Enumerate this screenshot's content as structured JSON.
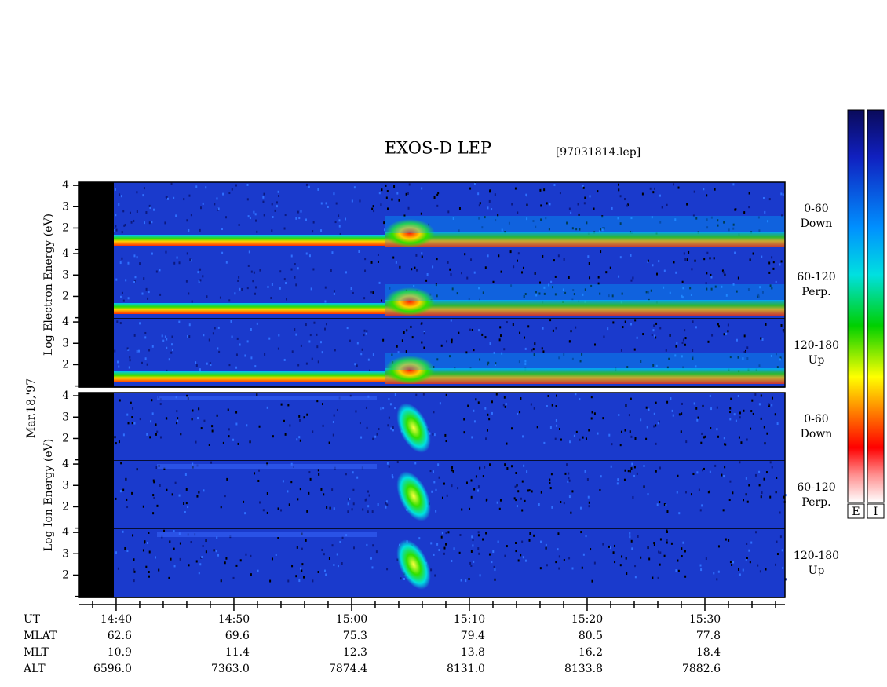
{
  "chart_data": {
    "type": "spectrogram",
    "title": "EXOS-D LEP",
    "file_label": "[97031814.lep]",
    "date_label": "Mar.18,'97",
    "xlim": [
      876.87,
      936.8
    ],
    "xticks": [
      {
        "value": 880,
        "label": "14:40"
      },
      {
        "value": 890,
        "label": "14:50"
      },
      {
        "value": 900,
        "label": "15:00"
      },
      {
        "value": 910,
        "label": "15:10"
      },
      {
        "value": 920,
        "label": "15:20"
      },
      {
        "value": 930,
        "label": "15:30"
      }
    ],
    "minor_xticks": [
      878,
      882,
      884,
      886,
      888,
      892,
      894,
      896,
      898,
      902,
      904,
      906,
      908,
      912,
      914,
      916,
      918,
      922,
      924,
      926,
      928,
      932,
      934,
      936
    ],
    "ylim": [
      0.95,
      4.15
    ],
    "yticks": [
      2,
      3,
      4
    ],
    "minor_yticks": [
      1
    ],
    "groups": [
      {
        "ylabel": "Log Electron Energy (eV)",
        "species": "electron",
        "panels": [
          [
            "0-60",
            "Down"
          ],
          [
            "60-120",
            "Perp."
          ],
          [
            "120-180",
            "Up"
          ]
        ]
      },
      {
        "ylabel": "Log Ion Energy (eV)",
        "species": "ion",
        "panels": [
          [
            "0-60",
            "Down"
          ],
          [
            "60-120",
            "Perp."
          ],
          [
            "120-180",
            "Up"
          ]
        ]
      }
    ],
    "colorbar_labels": [
      "E",
      "I"
    ],
    "ephemeris": {
      "row_labels": [
        "UT",
        "MLAT",
        "MLT",
        "ALT"
      ],
      "rows": [
        [
          "62.6",
          "69.6",
          "75.3",
          "79.4",
          "80.5",
          "77.8"
        ],
        [
          "10.9",
          "11.4",
          "12.3",
          "13.8",
          "16.2",
          "18.4"
        ],
        [
          "6596.0",
          "7363.0",
          "7874.4",
          "8131.0",
          "8133.8",
          "7882.6"
        ]
      ]
    }
  }
}
